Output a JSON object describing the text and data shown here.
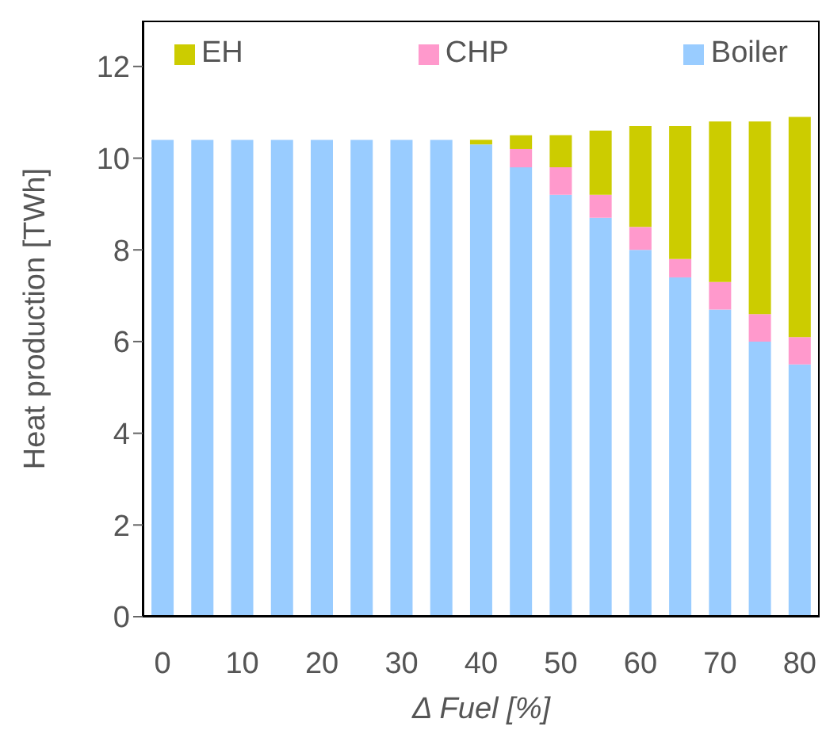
{
  "chart_data": {
    "type": "bar",
    "stacked": true,
    "xlabel": "Δ Fuel [%]",
    "ylabel": "Heat production [TWh]",
    "categories": [
      "0",
      null,
      "10",
      null,
      "20",
      null,
      "30",
      null,
      "40",
      null,
      "50",
      null,
      "60",
      null,
      "70",
      null,
      "80"
    ],
    "series": [
      {
        "name": "Boiler",
        "color": "#99ccff",
        "values": [
          10.4,
          10.4,
          10.4,
          10.4,
          10.4,
          10.4,
          10.4,
          10.4,
          10.3,
          9.8,
          9.2,
          8.7,
          8.0,
          7.4,
          6.7,
          6.0,
          5.5
        ]
      },
      {
        "name": "CHP",
        "color": "#ff99cc",
        "values": [
          0,
          0,
          0,
          0,
          0,
          0,
          0,
          0,
          0,
          0.4,
          0.6,
          0.5,
          0.5,
          0.4,
          0.6,
          0.6,
          0.6
        ]
      },
      {
        "name": "EH",
        "color": "#cccc00",
        "values": [
          0,
          0,
          0,
          0,
          0,
          0,
          0,
          0,
          0.1,
          0.3,
          0.7,
          1.4,
          2.2,
          2.9,
          3.5,
          4.2,
          4.8
        ]
      }
    ],
    "ylim": [
      0,
      13
    ],
    "yticks": [
      0,
      2,
      4,
      6,
      8,
      10,
      12
    ],
    "legend": "top"
  }
}
